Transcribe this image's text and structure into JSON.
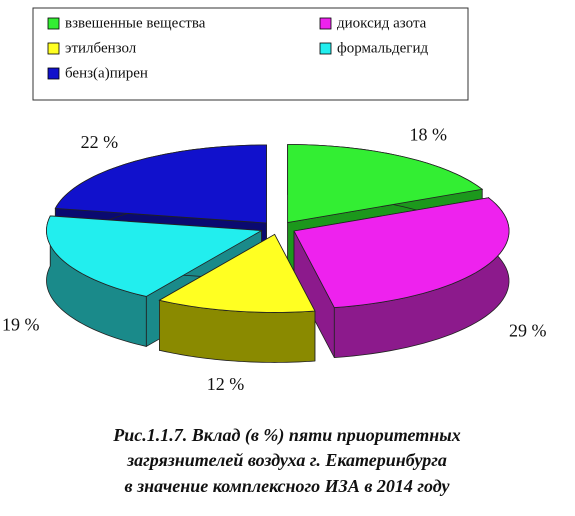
{
  "chart_data": {
    "type": "pie",
    "title": [
      "Рис.1.1.7. Вклад (в %) пяти приоритетных",
      "загрязнителей воздуха г. Екатеринбурга",
      "в значение комплексного ИЗА в 2014 году"
    ],
    "categories": [
      "взвешенные вещества",
      "диоксид азота",
      "этилбензол",
      "формальдегид",
      "бенз(а)пирен"
    ],
    "values": [
      18,
      29,
      12,
      19,
      22
    ],
    "value_labels": [
      "18 %",
      "29 %",
      "12 %",
      "19 %",
      "22 %"
    ],
    "colors": [
      "#33ee33",
      "#ee22ee",
      "#ffff22",
      "#22eeee",
      "#1111cc"
    ],
    "side_colors": [
      "#1c981c",
      "#8c1a8c",
      "#8a8a00",
      "#1a8a8a",
      "#0a0a70"
    ],
    "legend": "top"
  }
}
